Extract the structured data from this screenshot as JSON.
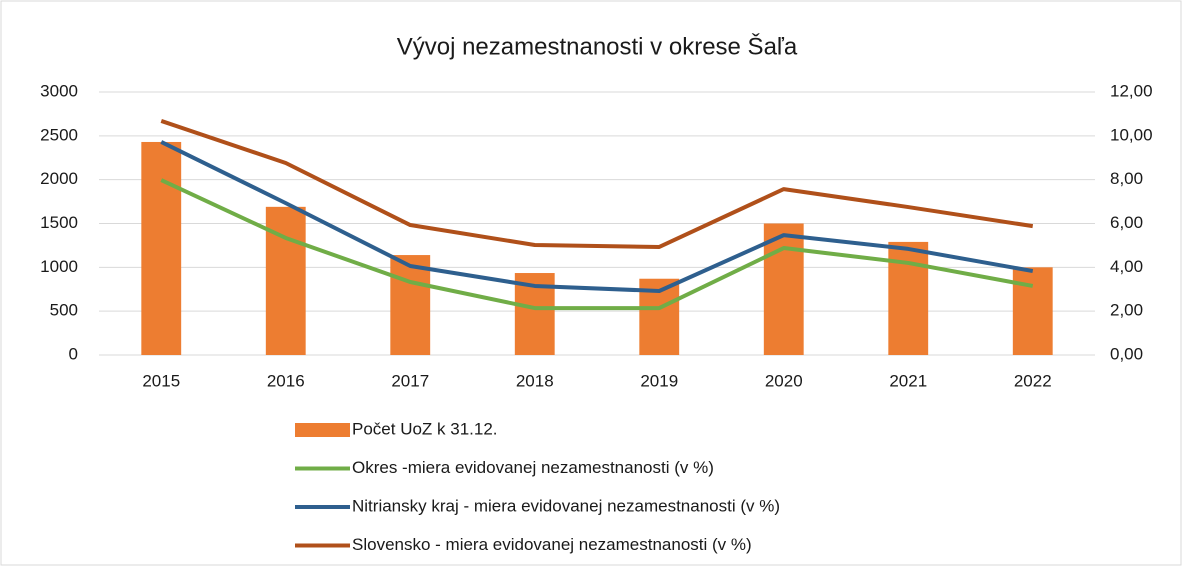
{
  "chart_data": {
    "type": "bar-line",
    "title": "Vývoj nezamestnanosti v okrese Šaľa",
    "categories": [
      "2015",
      "2016",
      "2017",
      "2018",
      "2019",
      "2020",
      "2021",
      "2022"
    ],
    "series": [
      {
        "name": "Počet UoZ k 31.12.",
        "type": "bar",
        "color": "#ed7d31",
        "values": [
          2430,
          1690,
          1140,
          935,
          870,
          1500,
          1290,
          1000
        ]
      },
      {
        "name": "Okres -miera evidovanej nezamestnanosti (v %)",
        "type": "line",
        "axis": "y2",
        "color": "#70ad47",
        "values": [
          7.98,
          5.34,
          3.33,
          2.14,
          2.14,
          4.88,
          4.2,
          3.15
        ]
      },
      {
        "name": "Nitriansky kraj - miera evidovanej nezamestnanosti (v %)",
        "type": "line",
        "axis": "y2",
        "color": "#2e5f8e",
        "values": [
          9.72,
          6.93,
          4.06,
          3.15,
          2.92,
          5.47,
          4.84,
          3.83
        ]
      },
      {
        "name": "Slovensko - miera evidovanej nezamestnanosti (v %)",
        "type": "line",
        "axis": "y2",
        "color": "#b0501a",
        "values": [
          10.68,
          8.76,
          5.93,
          5.02,
          4.93,
          7.57,
          6.75,
          5.88
        ]
      }
    ],
    "ylim": [
      0,
      3000
    ],
    "yticks": [
      0,
      500,
      1000,
      1500,
      2000,
      2500,
      3000
    ],
    "y2lim": [
      0,
      12
    ],
    "y2ticks": [
      {
        "value": 0,
        "label": "0,00"
      },
      {
        "value": 2,
        "label": "2,00"
      },
      {
        "value": 4,
        "label": "4,00"
      },
      {
        "value": 6,
        "label": "6,00"
      },
      {
        "value": 8,
        "label": "8,00"
      },
      {
        "value": 10,
        "label": "10,00"
      },
      {
        "value": 12,
        "label": "12,00"
      }
    ],
    "grid": true,
    "legend": "bottom"
  }
}
